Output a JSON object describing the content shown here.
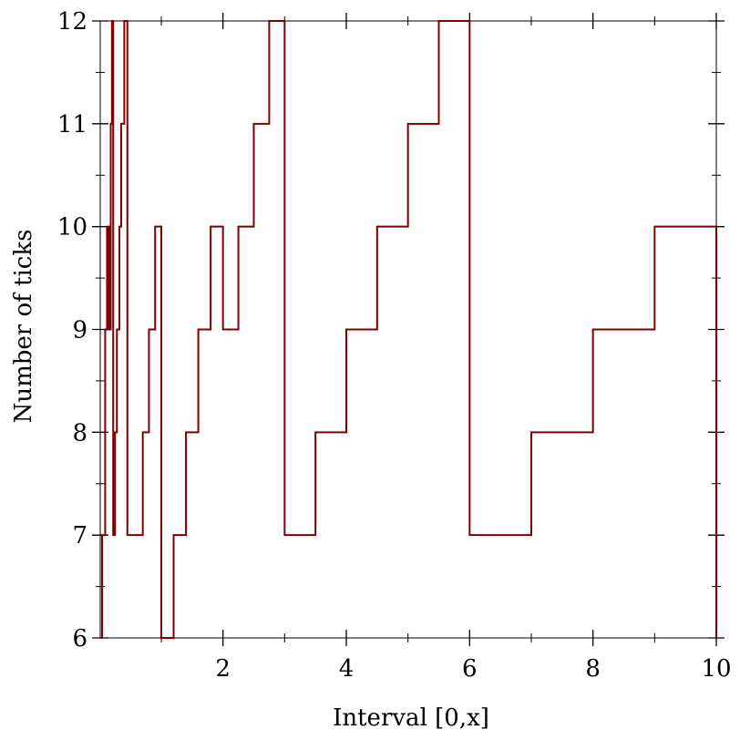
{
  "chart_data": {
    "type": "line",
    "title": "",
    "xlabel": "Interval [0,x]",
    "ylabel": "Number of ticks",
    "xlim": [
      0.01,
      10
    ],
    "ylim": [
      6,
      12
    ],
    "x_ticks": [
      2,
      4,
      6,
      8,
      10
    ],
    "y_ticks": [
      6,
      7,
      8,
      9,
      10,
      11,
      12
    ],
    "x_tick_labels": [
      "2",
      "4",
      "6",
      "8",
      "10"
    ],
    "y_tick_labels": [
      "6",
      "7",
      "8",
      "9",
      "10",
      "11",
      "12"
    ],
    "grid": false,
    "series": [
      {
        "color": "#800000",
        "step": true,
        "x": [
          0.01,
          0.04,
          0.09,
          0.12,
          0.15,
          0.18,
          0.2,
          0.22,
          0.25,
          0.28,
          0.32,
          0.35,
          0.4,
          0.45,
          0.5,
          0.55,
          0.6,
          0.7,
          0.8,
          0.9,
          1.0,
          1.2,
          1.4,
          1.6,
          1.8,
          2.0,
          2.25,
          2.5,
          2.75,
          3.0,
          3.5,
          4.0,
          4.5,
          5.0,
          5.5,
          6.0,
          7.0,
          8.0,
          9.0,
          10.0
        ],
        "y": [
          6,
          7,
          9,
          10,
          9,
          11,
          12,
          7,
          8,
          9,
          10,
          11,
          12,
          7,
          7,
          7,
          7,
          8,
          9,
          10,
          6,
          7,
          8,
          9,
          10,
          9,
          10,
          11,
          12,
          7,
          8,
          9,
          10,
          11,
          12,
          7,
          8,
          9,
          10,
          6
        ]
      }
    ]
  }
}
